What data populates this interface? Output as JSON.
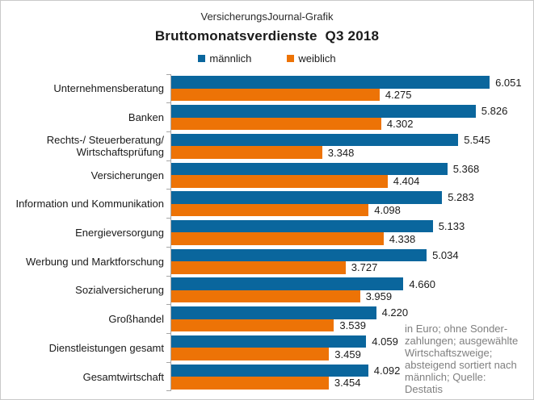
{
  "header": {
    "brand": "VersicherungsJournal-Grafik"
  },
  "chart_data": {
    "type": "bar",
    "orientation": "horizontal",
    "title": "Bruttomonatsverdienste  Q3 2018",
    "legend_position": "top",
    "grid": false,
    "xlim": [
      900,
      6700
    ],
    "categories": [
      "Unternehmensberatung",
      "Banken",
      "Rechts-/ Steuerberatung/ Wirtschaftsprüfung",
      "Versicherungen",
      "Information und Kommunikation",
      "Energieversorgung",
      "Werbung und Marktforschung",
      "Sozialversicherung",
      "Großhandel",
      "Dienstleistungen gesamt",
      "Gesamtwirtschaft"
    ],
    "series": [
      {
        "name": "männlich",
        "color": "#0a669d",
        "values": [
          6051,
          5826,
          5545,
          5368,
          5283,
          5133,
          5034,
          4660,
          4220,
          4059,
          4092
        ],
        "labels": [
          "6.051",
          "5.826",
          "5.545",
          "5.368",
          "5.283",
          "5.133",
          "5.034",
          "4.660",
          "4.220",
          "4.059",
          "4.092"
        ]
      },
      {
        "name": "weiblich",
        "color": "#ed7306",
        "values": [
          4275,
          4302,
          3348,
          4404,
          4098,
          4338,
          3727,
          3959,
          3539,
          3459,
          3454
        ],
        "labels": [
          "4.275",
          "4.302",
          "3.348",
          "4.404",
          "4.098",
          "4.338",
          "3.727",
          "3.959",
          "3.539",
          "3.459",
          "3.454"
        ]
      }
    ],
    "footnote": "in Euro; ohne Sonder-\nzahlungen; ausgewählte\nWirtschaftszweige;\nabsteigend sortiert nach\nmännlich; Quelle:\nDestatis"
  },
  "colors": {
    "axis": "#a6a6a6",
    "footnote_text": "#7f7f7f",
    "border": "#c9c9c9"
  }
}
